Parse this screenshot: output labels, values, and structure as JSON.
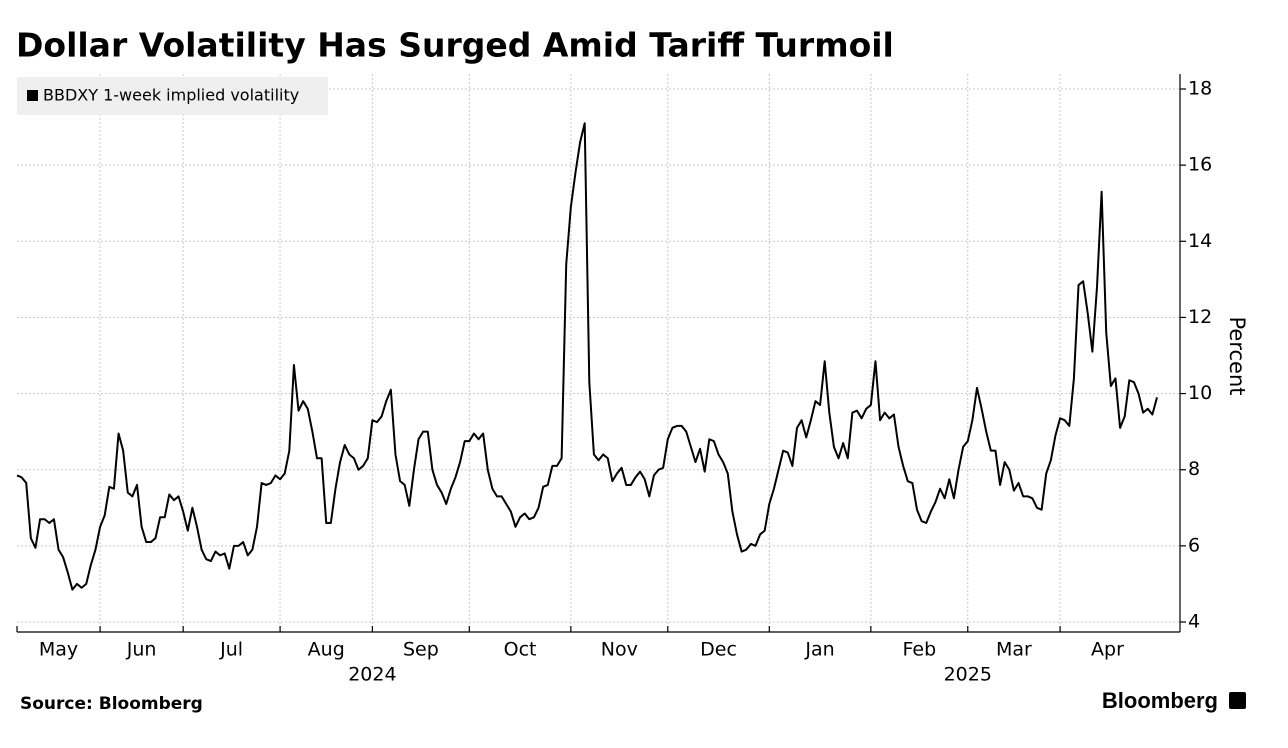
{
  "chart_data": {
    "type": "line",
    "title": "Dollar Volatility Has Surged Amid Tariff Turmoil",
    "y_label": "Percent",
    "source": "Source: Bloomberg",
    "brand": "Bloomberg",
    "legend_position": "top-left",
    "grid": true,
    "ylim": [
      4,
      18
    ],
    "yticks": [
      4,
      6,
      8,
      10,
      12,
      14,
      16,
      18
    ],
    "categories": [
      "May",
      null,
      null,
      null,
      null,
      null,
      null,
      null,
      null,
      null,
      null,
      null,
      null,
      null,
      null,
      null,
      null,
      null,
      "Jun",
      null,
      null,
      null,
      null,
      null,
      null,
      null,
      null,
      null,
      null,
      null,
      null,
      null,
      null,
      null,
      null,
      null,
      "Jul",
      null,
      null,
      null,
      null,
      null,
      null,
      null,
      null,
      null,
      null,
      null,
      null,
      null,
      null,
      null,
      null,
      null,
      null,
      null,
      null,
      "Aug",
      null,
      null,
      null,
      null,
      null,
      null,
      null,
      null,
      null,
      null,
      null,
      null,
      null,
      null,
      null,
      null,
      null,
      null,
      null,
      "Sep",
      null,
      null,
      null,
      null,
      null,
      null,
      null,
      null,
      null,
      null,
      null,
      null,
      null,
      null,
      null,
      null,
      null,
      null,
      null,
      null,
      "Oct",
      null,
      null,
      null,
      null,
      null,
      null,
      null,
      null,
      null,
      null,
      null,
      null,
      null,
      null,
      null,
      null,
      null,
      null,
      null,
      null,
      null,
      "Nov",
      null,
      null,
      null,
      null,
      null,
      null,
      null,
      null,
      null,
      null,
      null,
      null,
      null,
      null,
      null,
      null,
      null,
      null,
      null,
      null,
      "Dec",
      null,
      null,
      null,
      null,
      null,
      null,
      null,
      null,
      null,
      null,
      null,
      null,
      null,
      null,
      null,
      null,
      null,
      null,
      null,
      null,
      null,
      "Jan",
      null,
      null,
      null,
      null,
      null,
      null,
      null,
      null,
      null,
      null,
      null,
      null,
      null,
      null,
      null,
      null,
      null,
      null,
      null,
      null,
      null,
      "Feb",
      null,
      null,
      null,
      null,
      null,
      null,
      null,
      null,
      null,
      null,
      null,
      null,
      null,
      null,
      null,
      null,
      null,
      null,
      null,
      null,
      "Mar",
      null,
      null,
      null,
      null,
      null,
      null,
      null,
      null,
      null,
      null,
      null,
      null,
      null,
      null,
      null,
      null,
      null,
      null,
      null,
      "Apr",
      null,
      null,
      null,
      null,
      null,
      null,
      null,
      null,
      null,
      null,
      null,
      null,
      null,
      null,
      null,
      null,
      null,
      null,
      null,
      null,
      null
    ],
    "years": [
      null,
      null,
      null,
      null,
      null,
      null,
      null,
      null,
      null,
      null,
      null,
      null,
      null,
      null,
      null,
      null,
      null,
      null,
      null,
      null,
      null,
      null,
      null,
      null,
      null,
      null,
      null,
      null,
      null,
      null,
      null,
      null,
      null,
      null,
      null,
      null,
      null,
      null,
      null,
      null,
      null,
      null,
      null,
      null,
      null,
      null,
      null,
      null,
      null,
      null,
      null,
      null,
      null,
      null,
      null,
      null,
      null,
      null,
      null,
      null,
      null,
      null,
      null,
      null,
      null,
      null,
      null,
      null,
      null,
      null,
      null,
      null,
      null,
      null,
      null,
      null,
      null,
      "2024",
      null,
      null,
      null,
      null,
      null,
      null,
      null,
      null,
      null,
      null,
      null,
      null,
      null,
      null,
      null,
      null,
      null,
      null,
      null,
      null,
      null,
      null,
      null,
      null,
      null,
      null,
      null,
      null,
      null,
      null,
      null,
      null,
      null,
      null,
      null,
      null,
      null,
      null,
      null,
      null,
      null,
      null,
      null,
      null,
      null,
      null,
      null,
      null,
      null,
      null,
      null,
      null,
      null,
      null,
      null,
      null,
      null,
      null,
      null,
      null,
      null,
      null,
      null,
      null,
      null,
      null,
      null,
      null,
      null,
      null,
      null,
      null,
      null,
      null,
      null,
      null,
      null,
      null,
      null,
      null,
      null,
      null,
      null,
      null,
      null,
      null,
      null,
      null,
      null,
      null,
      null,
      null,
      null,
      null,
      null,
      null,
      null,
      null,
      null,
      null,
      null,
      null,
      null,
      null,
      null,
      null,
      null,
      null,
      null,
      null,
      null,
      null,
      null,
      null,
      null,
      null,
      null,
      null,
      null,
      null,
      null,
      null,
      null,
      null,
      null,
      null,
      null,
      null,
      "2025",
      null,
      null,
      null,
      null,
      null,
      null,
      null,
      null,
      null,
      null,
      null,
      null,
      null,
      null,
      null,
      null,
      null,
      null,
      null,
      null,
      null,
      null,
      null,
      null,
      null,
      null,
      null,
      null,
      null,
      null,
      null,
      null,
      null,
      null,
      null,
      null,
      null,
      null,
      null,
      null,
      null
    ],
    "series": [
      {
        "name": "BBDXY 1-week implied volatility",
        "color": "#000000",
        "values": [
          7.85,
          7.8,
          7.65,
          6.2,
          5.95,
          6.7,
          6.7,
          6.6,
          6.7,
          5.9,
          5.7,
          5.3,
          4.85,
          5.0,
          4.9,
          5.0,
          5.5,
          5.9,
          6.5,
          6.8,
          7.55,
          7.5,
          8.95,
          8.5,
          7.4,
          7.3,
          7.6,
          6.5,
          6.1,
          6.1,
          6.2,
          6.75,
          6.75,
          7.35,
          7.2,
          7.3,
          6.9,
          6.4,
          7.0,
          6.5,
          5.9,
          5.65,
          5.6,
          5.85,
          5.75,
          5.8,
          5.4,
          6.0,
          6.0,
          6.1,
          5.75,
          5.9,
          6.5,
          7.65,
          7.6,
          7.65,
          7.85,
          7.75,
          7.9,
          8.5,
          10.75,
          9.55,
          9.8,
          9.6,
          9.0,
          8.3,
          8.3,
          6.6,
          6.6,
          7.5,
          8.2,
          8.65,
          8.4,
          8.3,
          8.0,
          8.1,
          8.3,
          9.3,
          9.25,
          9.4,
          9.8,
          10.1,
          8.4,
          7.7,
          7.6,
          7.05,
          8.0,
          8.8,
          9.0,
          9.0,
          8.0,
          7.6,
          7.4,
          7.1,
          7.5,
          7.8,
          8.2,
          8.75,
          8.75,
          8.95,
          8.8,
          8.95,
          8.0,
          7.5,
          7.3,
          7.3,
          7.1,
          6.9,
          6.5,
          6.75,
          6.85,
          6.7,
          6.75,
          7.0,
          7.55,
          7.6,
          8.1,
          8.1,
          8.3,
          13.4,
          14.9,
          15.8,
          16.6,
          17.1,
          10.3,
          8.4,
          8.25,
          8.4,
          8.3,
          7.7,
          7.9,
          8.05,
          7.6,
          7.6,
          7.8,
          7.95,
          7.75,
          7.3,
          7.85,
          8.0,
          8.05,
          8.8,
          9.1,
          9.15,
          9.15,
          9.0,
          8.6,
          8.2,
          8.55,
          7.95,
          8.8,
          8.75,
          8.4,
          8.2,
          7.9,
          6.9,
          6.3,
          5.85,
          5.9,
          6.05,
          6.0,
          6.3,
          6.4,
          7.1,
          7.5,
          8.0,
          8.5,
          8.45,
          8.1,
          9.1,
          9.3,
          8.85,
          9.3,
          9.8,
          9.7,
          10.85,
          9.5,
          8.6,
          8.3,
          8.7,
          8.3,
          9.5,
          9.55,
          9.35,
          9.6,
          9.7,
          10.85,
          9.3,
          9.5,
          9.35,
          9.45,
          8.6,
          8.1,
          7.7,
          7.65,
          6.95,
          6.65,
          6.6,
          6.9,
          7.15,
          7.5,
          7.25,
          7.75,
          7.25,
          8.0,
          8.6,
          8.75,
          9.3,
          10.15,
          9.6,
          9.0,
          8.5,
          8.5,
          7.6,
          8.2,
          8.0,
          7.45,
          7.65,
          7.3,
          7.3,
          7.25,
          7.0,
          6.95,
          7.9,
          8.25,
          8.9,
          9.35,
          9.3,
          9.15,
          10.4,
          12.85,
          12.95,
          12.1,
          11.1,
          12.8,
          15.3,
          11.6,
          10.2,
          10.4,
          9.1,
          9.4,
          10.35,
          10.3,
          10.0,
          9.5,
          9.6,
          9.45,
          9.9
        ]
      }
    ]
  }
}
